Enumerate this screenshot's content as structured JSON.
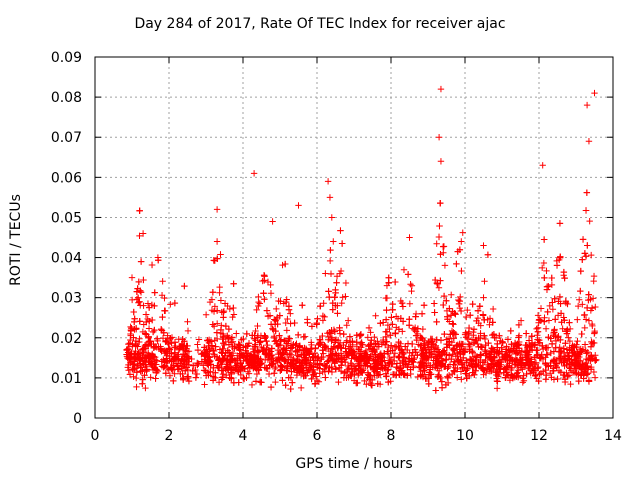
{
  "chart_data": {
    "type": "scatter",
    "title": "Day 284 of 2017, Rate Of TEC Index for receiver ajac",
    "xlabel": "GPS time / hours",
    "ylabel": "ROTI / TECUs",
    "xlim": [
      0,
      14
    ],
    "ylim": [
      0,
      0.09
    ],
    "xticks": [
      0,
      2,
      4,
      6,
      8,
      10,
      12,
      14
    ],
    "xtick_labels": [
      "0",
      "2",
      "4",
      "6",
      "8",
      "10",
      "12",
      "14"
    ],
    "yticks": [
      0,
      0.01,
      0.02,
      0.03,
      0.04,
      0.05,
      0.06,
      0.07,
      0.08,
      0.09
    ],
    "ytick_labels": [
      "0",
      "0.01",
      "0.02",
      "0.03",
      "0.04",
      "0.05",
      "0.06",
      "0.07",
      "0.08",
      "0.09"
    ],
    "grid": true,
    "marker": "+",
    "color": "#ff0000",
    "series": [
      {
        "name": "ROTI",
        "data_range_hours": [
          0.85,
          13.55
        ],
        "baseline_band": [
          0.005,
          0.02
        ],
        "notable_points": [
          {
            "x": 9.35,
            "y": 0.082
          },
          {
            "x": 13.5,
            "y": 0.081
          },
          {
            "x": 13.3,
            "y": 0.078
          },
          {
            "x": 9.3,
            "y": 0.07
          },
          {
            "x": 13.35,
            "y": 0.069
          },
          {
            "x": 9.35,
            "y": 0.064
          },
          {
            "x": 12.1,
            "y": 0.063
          },
          {
            "x": 4.3,
            "y": 0.061
          },
          {
            "x": 6.3,
            "y": 0.059
          },
          {
            "x": 6.35,
            "y": 0.055
          },
          {
            "x": 5.5,
            "y": 0.053
          },
          {
            "x": 3.3,
            "y": 0.052
          },
          {
            "x": 6.4,
            "y": 0.05
          },
          {
            "x": 4.8,
            "y": 0.049
          },
          {
            "x": 1.3,
            "y": 0.046
          },
          {
            "x": 8.5,
            "y": 0.045
          },
          {
            "x": 3.3,
            "y": 0.044
          },
          {
            "x": 9.9,
            "y": 0.044
          },
          {
            "x": 10.5,
            "y": 0.043
          },
          {
            "x": 1.7,
            "y": 0.04
          },
          {
            "x": 1.0,
            "y": 0.035
          },
          {
            "x": 2.5,
            "y": 0.024
          }
        ]
      }
    ]
  }
}
